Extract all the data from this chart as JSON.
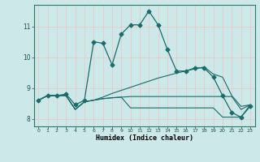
{
  "xlabel": "Humidex (Indice chaleur)",
  "bg_color": "#cce8e8",
  "grid_color": "#c8d8d8",
  "line_color": "#1a6b6b",
  "xlim": [
    -0.5,
    23.5
  ],
  "ylim": [
    7.75,
    11.7
  ],
  "xticks": [
    0,
    1,
    2,
    3,
    4,
    5,
    6,
    7,
    8,
    9,
    10,
    11,
    12,
    13,
    14,
    15,
    16,
    17,
    18,
    19,
    20,
    21,
    22,
    23
  ],
  "yticks": [
    8,
    9,
    10,
    11
  ],
  "line1_x": [
    0,
    1,
    2,
    3,
    4,
    5,
    6,
    7,
    8,
    9,
    10,
    11,
    12,
    13,
    14,
    15,
    16,
    17,
    18,
    19,
    20,
    21,
    22,
    23
  ],
  "line1_y": [
    8.6,
    8.75,
    8.75,
    8.8,
    8.45,
    8.6,
    10.5,
    10.45,
    9.75,
    10.75,
    11.05,
    11.05,
    11.5,
    11.05,
    10.25,
    9.55,
    9.55,
    9.65,
    9.65,
    9.35,
    8.75,
    8.2,
    8.05,
    8.4
  ],
  "line2_x": [
    0,
    1,
    2,
    3,
    4,
    5,
    6,
    7,
    8,
    9,
    10,
    11,
    12,
    13,
    14,
    15,
    16,
    17,
    18,
    19,
    20,
    21,
    22,
    23
  ],
  "line2_y": [
    8.6,
    8.75,
    8.75,
    8.75,
    8.3,
    8.55,
    8.6,
    8.7,
    8.82,
    8.92,
    9.02,
    9.12,
    9.22,
    9.32,
    9.4,
    9.48,
    9.55,
    9.62,
    9.68,
    9.45,
    9.35,
    8.75,
    8.4,
    8.45
  ],
  "line3_x": [
    0,
    1,
    2,
    3,
    4,
    5,
    6,
    7,
    8,
    9,
    10,
    11,
    12,
    13,
    14,
    15,
    16,
    17,
    18,
    19,
    20,
    21,
    22,
    23
  ],
  "line3_y": [
    8.6,
    8.75,
    8.75,
    8.75,
    8.3,
    8.55,
    8.6,
    8.65,
    8.68,
    8.7,
    8.72,
    8.72,
    8.72,
    8.72,
    8.72,
    8.72,
    8.72,
    8.72,
    8.72,
    8.72,
    8.72,
    8.72,
    8.3,
    8.45
  ],
  "line4_x": [
    0,
    1,
    2,
    3,
    4,
    5,
    6,
    7,
    8,
    9,
    10,
    11,
    12,
    13,
    14,
    15,
    16,
    17,
    18,
    19,
    20,
    21,
    22,
    23
  ],
  "line4_y": [
    8.6,
    8.75,
    8.75,
    8.75,
    8.3,
    8.55,
    8.6,
    8.65,
    8.68,
    8.7,
    8.35,
    8.35,
    8.35,
    8.35,
    8.35,
    8.35,
    8.35,
    8.35,
    8.35,
    8.35,
    8.05,
    8.05,
    8.05,
    8.45
  ]
}
